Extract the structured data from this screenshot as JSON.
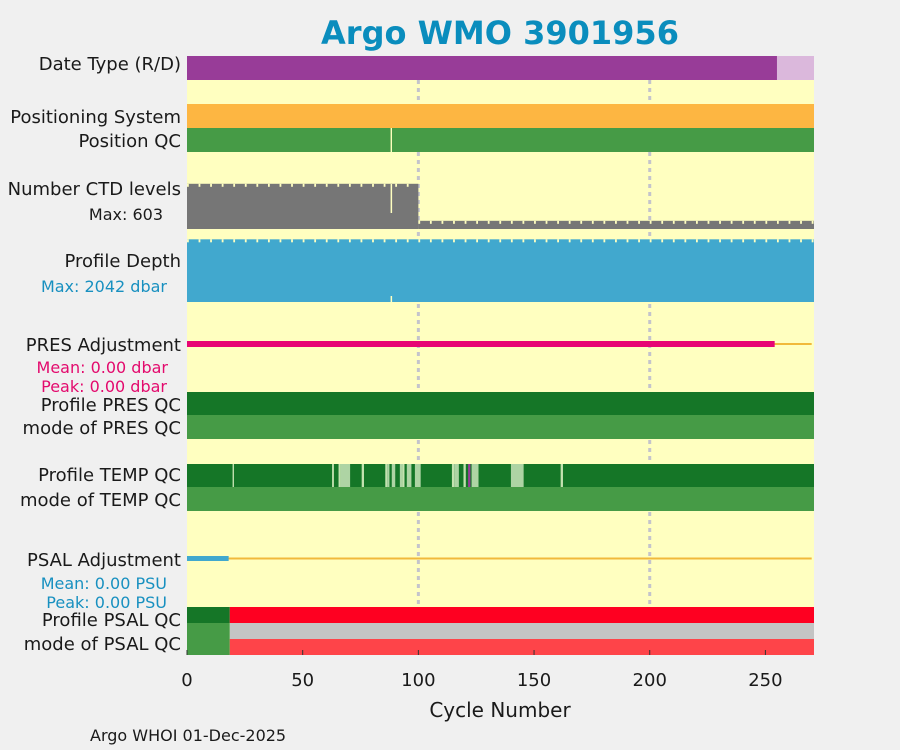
{
  "chart_data": {
    "type": "timeline",
    "title": "Argo WMO 3901956",
    "xlabel": "Cycle Number",
    "xlim": [
      0,
      271
    ],
    "xticks": [
      0,
      50,
      100,
      150,
      200,
      250
    ],
    "xtick_labels": [
      "0",
      "50",
      "100",
      "150",
      "200",
      "250"
    ],
    "vgrid": [
      100,
      200
    ],
    "footer": "Argo WHOI 01-Dec-2025",
    "rows": [
      {
        "key": "date_type",
        "label": "Date Type (R/D)",
        "segments": [
          {
            "from": 0,
            "to": 255,
            "state": "D"
          },
          {
            "from": 255,
            "to": 271,
            "state": "R"
          }
        ]
      },
      {
        "key": "positioning",
        "label": "Positioning System",
        "segments": [
          {
            "from": 0,
            "to": 271,
            "state": "GPS"
          }
        ]
      },
      {
        "key": "position_qc",
        "label": "Position QC",
        "segments": [
          {
            "from": 0,
            "to": 88,
            "state": "1"
          },
          {
            "from": 88.6,
            "to": 271,
            "state": "1"
          }
        ]
      },
      {
        "key": "ctd_levels",
        "label": "Number CTD levels",
        "max_label": "Max: 603",
        "max": 603,
        "levels": [
          {
            "from": 0,
            "to": 100,
            "value": 580
          },
          {
            "from": 100,
            "to": 271,
            "value": 105
          }
        ]
      },
      {
        "key": "profile_depth",
        "label": "Profile Depth",
        "max_label": "Max: 2042 dbar",
        "max": 2042,
        "levels": [
          {
            "from": 0,
            "to": 271,
            "value": 2000
          }
        ]
      },
      {
        "key": "pres_adj",
        "label": "PRES Adjustment",
        "mean_label": "Mean: 0.00 dbar",
        "peak_label": "Peak: 0.00 dbar",
        "adjusted_through": 254
      },
      {
        "key": "profile_pres_qc",
        "label": "Profile PRES QC",
        "segments": [
          {
            "from": 0,
            "to": 271,
            "state": "A"
          }
        ]
      },
      {
        "key": "mode_pres_qc",
        "label": "mode of PRES QC",
        "segments": [
          {
            "from": 0,
            "to": 271,
            "state": "1"
          }
        ]
      },
      {
        "key": "profile_temp_qc",
        "label": "Profile TEMP QC",
        "segments": [
          {
            "from": 0,
            "to": 271,
            "state": "A"
          }
        ],
        "marks": [
          {
            "from": 19.7,
            "to": 20.3,
            "state": "B"
          },
          {
            "from": 62.7,
            "to": 63.5,
            "state": "B"
          },
          {
            "from": 65.5,
            "to": 66.5,
            "state": "B"
          },
          {
            "from": 66.5,
            "to": 70.5,
            "state": "C"
          },
          {
            "from": 75.5,
            "to": 76.5,
            "state": "B"
          },
          {
            "from": 85.7,
            "to": 86.5,
            "state": "B"
          },
          {
            "from": 86.5,
            "to": 87.5,
            "state": "C"
          },
          {
            "from": 88.5,
            "to": 90,
            "state": "C"
          },
          {
            "from": 92,
            "to": 93,
            "state": "C"
          },
          {
            "from": 93,
            "to": 94,
            "state": "B"
          },
          {
            "from": 95,
            "to": 97,
            "state": "C"
          },
          {
            "from": 98.5,
            "to": 101,
            "state": "C"
          },
          {
            "from": 114.5,
            "to": 115.5,
            "state": "B"
          },
          {
            "from": 115.5,
            "to": 117.5,
            "state": "C"
          },
          {
            "from": 119.5,
            "to": 120.5,
            "state": "B"
          },
          {
            "from": 121.5,
            "to": 122.5,
            "state": "D"
          },
          {
            "from": 123,
            "to": 126,
            "state": "C"
          },
          {
            "from": 140,
            "to": 145.5,
            "state": "C"
          },
          {
            "from": 161.5,
            "to": 162.5,
            "state": "B"
          }
        ]
      },
      {
        "key": "mode_temp_qc",
        "label": "mode of TEMP QC",
        "segments": [
          {
            "from": 0,
            "to": 271,
            "state": "1"
          }
        ]
      },
      {
        "key": "psal_adj",
        "label": "PSAL Adjustment",
        "mean_label": "Mean: 0.00 PSU",
        "peak_label": "Peak: 0.00 PSU",
        "adjusted_through": 18
      },
      {
        "key": "profile_psal_qc",
        "label": "Profile PSAL QC",
        "segments": [
          {
            "from": 0,
            "to": 18.5,
            "state": "A"
          },
          {
            "from": 18.5,
            "to": 271,
            "state": "F"
          }
        ]
      },
      {
        "key": "mode_psal_qc",
        "label": "mode of PSAL QC",
        "segments": [
          {
            "from": 0,
            "to": 18.5,
            "state": "1"
          },
          {
            "from": 18.5,
            "to": 271,
            "state": "mixed"
          }
        ]
      }
    ]
  },
  "colors": {
    "background": "#f0f0f0",
    "plot": "#ffffc0",
    "title": "#0a8dbd",
    "grid": "#c4c4cc",
    "D": "#983c98",
    "R": "#dbb8dc",
    "GPS": "#fdb642",
    "qc1": "#469b46",
    "qcA": "#157627",
    "qcB": "#c4e2b0",
    "qcC": "#aed4a4",
    "qcD": "#e8ef1a",
    "qcF": "#fe0021",
    "qc3": "#c4c4c4",
    "qc4": "#fe4449",
    "ctd": "#767676",
    "depth": "#41a8ce",
    "pres_adj": "#e70574",
    "adj_line": "#f1b93b",
    "psal_adj": "#41a8ce",
    "pres_text": "#e30a6d",
    "psal_text": "#1890c0",
    "text": "#1a1a1a"
  }
}
